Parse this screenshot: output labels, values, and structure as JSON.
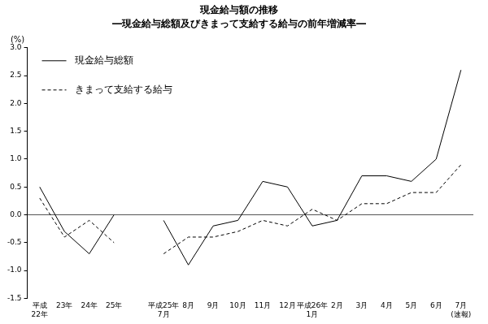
{
  "chart_data": {
    "type": "line",
    "title": "現金給与額の推移",
    "subtitle": "―現金給与総額及びきまって支給する給与の前年増減率―",
    "ylabel": "(%)",
    "categories": [
      "平成\n22年",
      "23年",
      "24年",
      "25年",
      null,
      "平成25年\n7月",
      "8月",
      "9月",
      "10月",
      "11月",
      "12月",
      "平成26年\n1月",
      "2月",
      "3月",
      "4月",
      "5月",
      "6月",
      "7月\n(速報)"
    ],
    "series": [
      {
        "name": "現金給与総額",
        "color": "#000000",
        "line_style": "solid",
        "values": [
          0.5,
          -0.3,
          -0.7,
          0.0,
          null,
          -0.1,
          -0.9,
          -0.2,
          -0.1,
          0.6,
          0.5,
          -0.2,
          -0.1,
          0.7,
          0.7,
          0.6,
          1.0,
          2.6
        ]
      },
      {
        "name": "きまって支給する給与",
        "color": "#000000",
        "line_style": "dashed",
        "values": [
          0.3,
          -0.4,
          -0.1,
          -0.5,
          null,
          -0.7,
          -0.4,
          -0.4,
          -0.3,
          -0.1,
          -0.2,
          0.1,
          -0.1,
          0.2,
          0.2,
          0.4,
          0.4,
          0.9
        ]
      }
    ],
    "ylim": [
      -1.5,
      3.0
    ],
    "yticks": [
      {
        "value": 3,
        "label": "3.0"
      },
      2.5,
      {
        "value": 2,
        "label": "2.0"
      },
      1.5,
      {
        "value": 1,
        "label": "1.0"
      },
      0.5,
      {
        "value": 0,
        "label": "0.0"
      },
      -0.5,
      {
        "value": -1,
        "label": "-1.0"
      },
      -1.5
    ],
    "grid": false,
    "legend": "upper left"
  }
}
